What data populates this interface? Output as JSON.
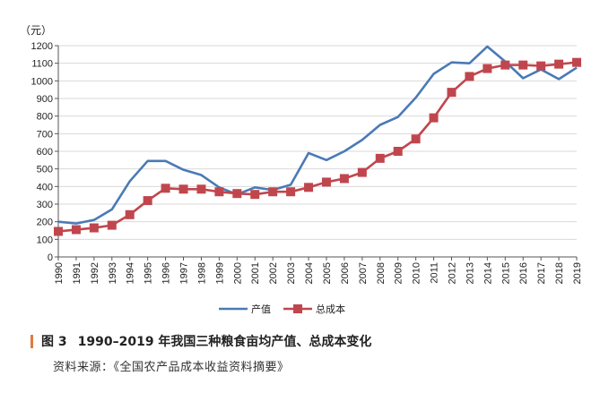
{
  "chart_data": {
    "type": "line",
    "unit_label": "（元）",
    "x": [
      "1990",
      "1991",
      "1992",
      "1993",
      "1994",
      "1995",
      "1996",
      "1997",
      "1998",
      "1999",
      "2000",
      "2001",
      "2002",
      "2003",
      "2004",
      "2005",
      "2006",
      "2007",
      "2008",
      "2009",
      "2010",
      "2011",
      "2012",
      "2013",
      "2014",
      "2015",
      "2016",
      "2017",
      "2018",
      "2019"
    ],
    "series": [
      {
        "name": "产值",
        "color": "#4a7ab5",
        "marker": "none",
        "values": [
          200,
          190,
          210,
          270,
          430,
          545,
          545,
          495,
          465,
          395,
          355,
          395,
          380,
          410,
          590,
          550,
          600,
          665,
          750,
          795,
          905,
          1040,
          1105,
          1100,
          1195,
          1110,
          1015,
          1065,
          1010,
          1075
        ]
      },
      {
        "name": "总成本",
        "color": "#c0464e",
        "marker": "square",
        "values": [
          145,
          155,
          165,
          180,
          240,
          320,
          390,
          385,
          385,
          370,
          360,
          355,
          370,
          370,
          395,
          425,
          445,
          480,
          560,
          600,
          670,
          790,
          935,
          1025,
          1070,
          1090,
          1090,
          1085,
          1095,
          1105
        ]
      }
    ],
    "ylim": [
      0,
      1200
    ],
    "yticks": [
      0,
      100,
      200,
      300,
      400,
      500,
      600,
      700,
      800,
      900,
      1000,
      1100,
      1200
    ],
    "grid": true,
    "legend_position": "bottom-center"
  },
  "caption": {
    "label": "图 3",
    "title": "1990–2019 年我国三种粮食亩均产值、总成本变化"
  },
  "source": "资料来源：《全国农产品成本收益资料摘要》"
}
